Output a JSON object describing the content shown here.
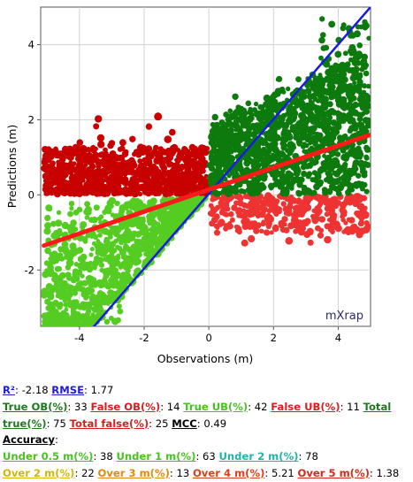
{
  "chart_data": {
    "type": "scatter",
    "xlabel": "Observations (m)",
    "ylabel": "Predictions (m)",
    "xlim": [
      -5.2,
      5.0
    ],
    "ylim": [
      -3.5,
      5.0
    ],
    "xticks": [
      -4,
      -2,
      0,
      2,
      4
    ],
    "yticks": [
      -2,
      0,
      2,
      4
    ],
    "xtick_labels": [
      "-4",
      "-2",
      "0",
      "2",
      "4"
    ],
    "ytick_labels": [
      "-2",
      "0",
      "2",
      "4"
    ],
    "grid": true,
    "watermark": "mXrap",
    "categories": [
      {
        "name": "True OB",
        "color": "#0c7a0c"
      },
      {
        "name": "False OB",
        "color": "#c80000"
      },
      {
        "name": "True UB",
        "color": "#55cc22"
      },
      {
        "name": "False UB",
        "color": "#ee3333"
      }
    ],
    "lines": [
      {
        "name": "y = x",
        "color": "#1a1ae6",
        "points": [
          [
            -3.55,
            -3.5
          ],
          [
            5.0,
            5.0
          ]
        ]
      },
      {
        "name": "regression",
        "color": "#ff1a1a",
        "points": [
          [
            -5.1,
            -1.35
          ],
          [
            5.0,
            1.6
          ]
        ]
      }
    ]
  },
  "stats": {
    "r2_label": "R²",
    "r2_value": ": -2.18 ",
    "rmse_label": "RMSE",
    "rmse_value": ": 1.77",
    "true_ob_label": "True OB(%)",
    "true_ob_value": ": 33 ",
    "false_ob_label": "False OB(%)",
    "false_ob_value": ": 14 ",
    "true_ub_label": "True UB(%)",
    "true_ub_value": ": 42 ",
    "false_ub_label": "False UB(%)",
    "false_ub_value": ": 11 ",
    "total_true_label_a": "Total",
    "total_true_label_b": "true(%)",
    "total_true_value": ": 75 ",
    "total_false_label": "Total false(%)",
    "total_false_value": ": 25 ",
    "mcc_label": "MCC",
    "mcc_value": ": 0.49",
    "accuracy_label": "Accuracy",
    "accuracy_colon": ":",
    "under05_label": "Under 0.5 m(%)",
    "under05_value": ": 38 ",
    "under1_label": "Under 1 m(%)",
    "under1_value": ": 63 ",
    "under2_label": "Under 2 m(%)",
    "under2_value": ": 78",
    "over2_label": "Over 2 m(%)",
    "over2_value": ": 22 ",
    "over3_label": "Over 3 m(%)",
    "over3_value": ": 13 ",
    "over4_label": "Over 4 m(%)",
    "over4_value": ": 5.21 ",
    "over5_label": "Over 5 m(%)",
    "over5_value": ": 1.38"
  }
}
